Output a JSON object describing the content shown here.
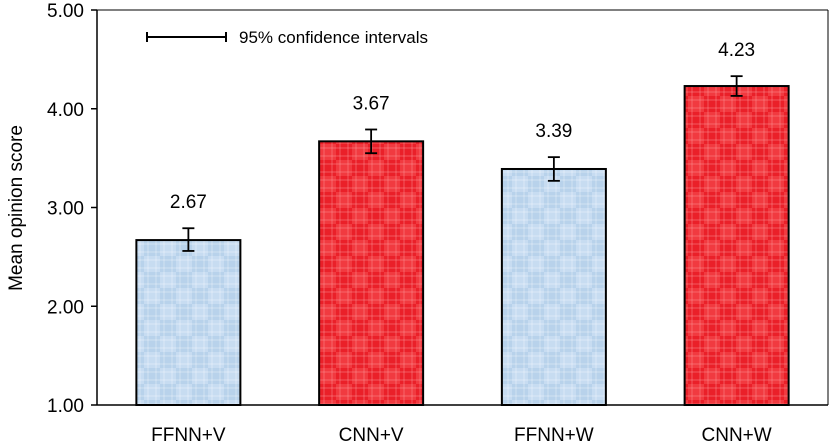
{
  "chart_data": {
    "type": "bar",
    "title": "",
    "xlabel": "",
    "ylabel": "Mean opinion score",
    "ylim": [
      1.0,
      5.0
    ],
    "yticks": [
      "1.00",
      "2.00",
      "3.00",
      "4.00",
      "5.00"
    ],
    "categories": [
      "FFNN+V",
      "CNN+V",
      "FFNN+W",
      "CNN+W"
    ],
    "values": [
      2.67,
      3.67,
      3.39,
      4.23
    ],
    "value_labels": [
      "2.67",
      "3.67",
      "3.39",
      "4.23"
    ],
    "ci_low": [
      2.56,
      3.55,
      3.27,
      4.13
    ],
    "ci_high": [
      2.79,
      3.79,
      3.51,
      4.33
    ],
    "bar_colors": [
      "#bcd5ee",
      "#f0232b",
      "#bcd5ee",
      "#f0232b"
    ],
    "legend": "95% confidence intervals",
    "grid": false
  }
}
